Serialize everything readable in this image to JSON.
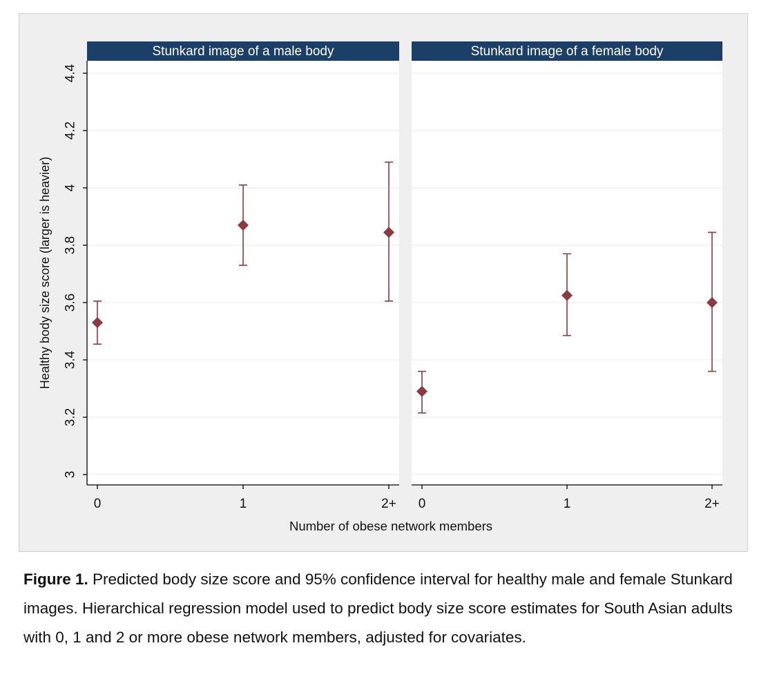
{
  "caption": {
    "label": "Figure 1.",
    "text": " Predicted body size score and 95% confidence interval for healthy male and female Stunkard images.  Hierarchical regression model used to predict body size score estimates for South Asian adults with 0, 1 and 2 or more obese network members, adjusted for covariates."
  },
  "colors": {
    "marker": "#8b3a42",
    "panel_header": "#1b3f66",
    "panel_header_text": "#ffffff",
    "outer_bg": "#efefef",
    "plot_bg": "#ffffff",
    "grid": "#eaeaea"
  },
  "chart_data": {
    "type": "scatter",
    "subtype": "point-with-error-bars",
    "ylabel": "Healthy body size score (larger is heavier)",
    "xlabel": "Number of obese network members",
    "ylim": [
      3,
      4.4
    ],
    "yticks": [
      3,
      3.2,
      3.4,
      3.6,
      3.8,
      4,
      4.2,
      4.4
    ],
    "ytick_labels": [
      "3",
      "3.2",
      "3.4",
      "3.6",
      "3.8",
      "4",
      "4.2",
      "4.4"
    ],
    "categories": [
      "0",
      "1",
      "2+"
    ],
    "grid": true,
    "panels": [
      {
        "title": "Stunkard image of a male body",
        "points": [
          {
            "x": "0",
            "y": 3.53,
            "lower": 3.455,
            "upper": 3.605
          },
          {
            "x": "1",
            "y": 3.87,
            "lower": 3.73,
            "upper": 4.01
          },
          {
            "x": "2+",
            "y": 3.845,
            "lower": 3.605,
            "upper": 4.09
          }
        ]
      },
      {
        "title": "Stunkard image of a female body",
        "points": [
          {
            "x": "0",
            "y": 3.29,
            "lower": 3.215,
            "upper": 3.36
          },
          {
            "x": "1",
            "y": 3.625,
            "lower": 3.485,
            "upper": 3.77
          },
          {
            "x": "2+",
            "y": 3.6,
            "lower": 3.36,
            "upper": 3.845
          }
        ]
      }
    ]
  }
}
